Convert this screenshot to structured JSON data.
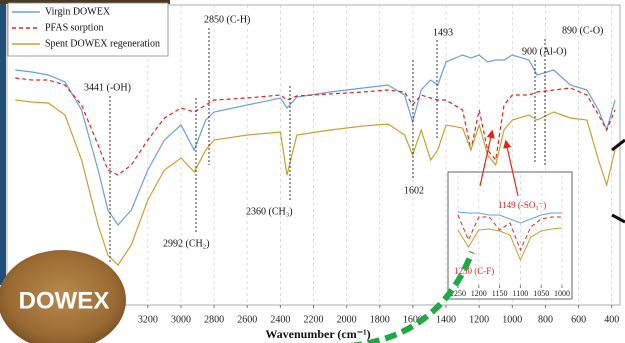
{
  "chart_data": [
    {
      "type": "line",
      "x": [
        4000,
        3900,
        3800,
        3700,
        3600,
        3500,
        3441,
        3380,
        3300,
        3200,
        3100,
        3000,
        2920,
        2850,
        2800,
        2600,
        2400,
        2360,
        2300,
        2100,
        1900,
        1750,
        1650,
        1602,
        1550,
        1493,
        1450,
        1400,
        1300,
        1250,
        1200,
        1149,
        1100,
        1050,
        1000,
        900,
        850,
        750,
        650,
        550,
        480,
        430,
        380
      ],
      "xlim": [
        4050,
        350
      ],
      "xticks": [
        3200,
        3000,
        2800,
        2600,
        2400,
        2200,
        2000,
        1800,
        1600,
        1400,
        1200,
        1000,
        800,
        600,
        400
      ],
      "ylim": [
        0,
        300
      ],
      "grid": true,
      "x_label": "Wavenumber (cm⁻¹)",
      "legend": "top-left",
      "series": [
        {
          "name": "Virgin DOWEX",
          "color": "#6a9fd8",
          "line_style": "solid",
          "values": [
            235,
            233,
            230,
            223,
            195,
            135,
            95,
            80,
            95,
            135,
            165,
            180,
            155,
            185,
            193,
            200,
            207,
            197,
            208,
            213,
            217,
            220,
            210,
            183,
            215,
            225,
            220,
            243,
            250,
            247,
            250,
            243,
            245,
            245,
            250,
            245,
            230,
            235,
            220,
            215,
            195,
            175,
            205
          ]
        },
        {
          "name": "PFAS sorption",
          "color": "#e3231c",
          "line_style": "dashed",
          "values": [
            227,
            225,
            225,
            220,
            200,
            160,
            135,
            130,
            140,
            165,
            187,
            197,
            193,
            200,
            205,
            207,
            210,
            205,
            209,
            211,
            213,
            215,
            213,
            200,
            210,
            207,
            205,
            205,
            195,
            155,
            195,
            155,
            145,
            200,
            210,
            210,
            213,
            215,
            217,
            210,
            190,
            175,
            195
          ]
        },
        {
          "name": "Spent DOWEX regeneration",
          "color": "#c9a030",
          "line_style": "solid",
          "values": [
            205,
            203,
            202,
            190,
            145,
            80,
            50,
            40,
            60,
            105,
            135,
            147,
            133,
            155,
            165,
            170,
            173,
            130,
            170,
            175,
            179,
            181,
            170,
            150,
            175,
            145,
            155,
            180,
            177,
            155,
            180,
            150,
            140,
            175,
            185,
            190,
            185,
            193,
            187,
            185,
            145,
            120,
            155
          ]
        }
      ],
      "annotations": [
        "3441 (-OH)",
        "2992 (CH₂)",
        "2850 (C-H)",
        "2360 (CH₃)",
        "1602",
        "1493",
        "900 (Al-O)",
        "890 (C-O)"
      ]
    },
    {
      "type": "line",
      "x": [
        1250,
        1225,
        1200,
        1175,
        1150,
        1125,
        1100,
        1075,
        1050,
        1025,
        1000
      ],
      "xlim": [
        1274,
        976
      ],
      "xticks": [
        1250,
        1200,
        1150,
        1100,
        1050,
        1000
      ],
      "ylim": [
        0,
        110
      ],
      "grid": true,
      "series": [
        {
          "color": "#6a9fd8",
          "line_style": "solid",
          "values": [
            73,
            72,
            72,
            70,
            70,
            66,
            62,
            66,
            70,
            72,
            72
          ]
        },
        {
          "color": "#e3231c",
          "line_style": "dashed",
          "values": [
            70,
            45,
            68,
            68,
            55,
            62,
            35,
            58,
            66,
            68,
            68
          ]
        },
        {
          "color": "#c9a030",
          "line_style": "solid",
          "values": [
            55,
            38,
            55,
            56,
            54,
            50,
            25,
            48,
            54,
            56,
            57
          ]
        }
      ],
      "annotations": [
        "1149 (-SO₃⁻)",
        "1250 (C-F)"
      ]
    }
  ],
  "photo_label": "DOWEX"
}
